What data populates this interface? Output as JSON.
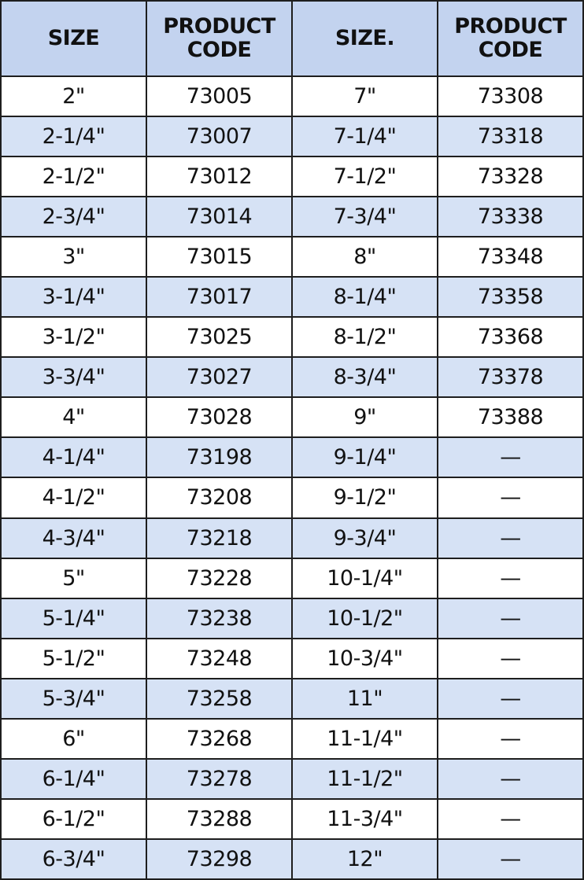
{
  "colors": {
    "header_bg": "#c3d3ef",
    "alt_row_bg": "#d6e2f5",
    "border": "#1e1e1e"
  },
  "headers": [
    [
      "SIZE"
    ],
    [
      "PRODUCT",
      "CODE"
    ],
    [
      "SIZE."
    ],
    [
      "PRODUCT",
      "CODE"
    ]
  ],
  "rows": [
    [
      "2\"",
      "73005",
      "7\"",
      "73308"
    ],
    [
      "2-1/4\"",
      "73007",
      "7-1/4\"",
      "73318"
    ],
    [
      "2-1/2\"",
      "73012",
      "7-1/2\"",
      "73328"
    ],
    [
      "2-3/4\"",
      "73014",
      "7-3/4\"",
      "73338"
    ],
    [
      "3\"",
      "73015",
      "8\"",
      "73348"
    ],
    [
      "3-1/4\"",
      "73017",
      "8-1/4\"",
      "73358"
    ],
    [
      "3-1/2\"",
      "73025",
      "8-1/2\"",
      "73368"
    ],
    [
      "3-3/4\"",
      "73027",
      "8-3/4\"",
      "73378"
    ],
    [
      "4\"",
      "73028",
      "9\"",
      "73388"
    ],
    [
      "4-1/4\"",
      "73198",
      "9-1/4\"",
      "—"
    ],
    [
      "4-1/2\"",
      "73208",
      "9-1/2\"",
      "—"
    ],
    [
      "4-3/4\"",
      "73218",
      "9-3/4\"",
      "—"
    ],
    [
      "5\"",
      "73228",
      "10-1/4\"",
      "—"
    ],
    [
      "5-1/4\"",
      "73238",
      "10-1/2\"",
      "—"
    ],
    [
      "5-1/2\"",
      "73248",
      "10-3/4\"",
      "—"
    ],
    [
      "5-3/4\"",
      "73258",
      "11\"",
      "—"
    ],
    [
      "6\"",
      "73268",
      "11-1/4\"",
      "—"
    ],
    [
      "6-1/4\"",
      "73278",
      "11-1/2\"",
      "—"
    ],
    [
      "6-1/2\"",
      "73288",
      "11-3/4\"",
      "—"
    ],
    [
      "6-3/4\"",
      "73298",
      "12\"",
      "—"
    ]
  ]
}
